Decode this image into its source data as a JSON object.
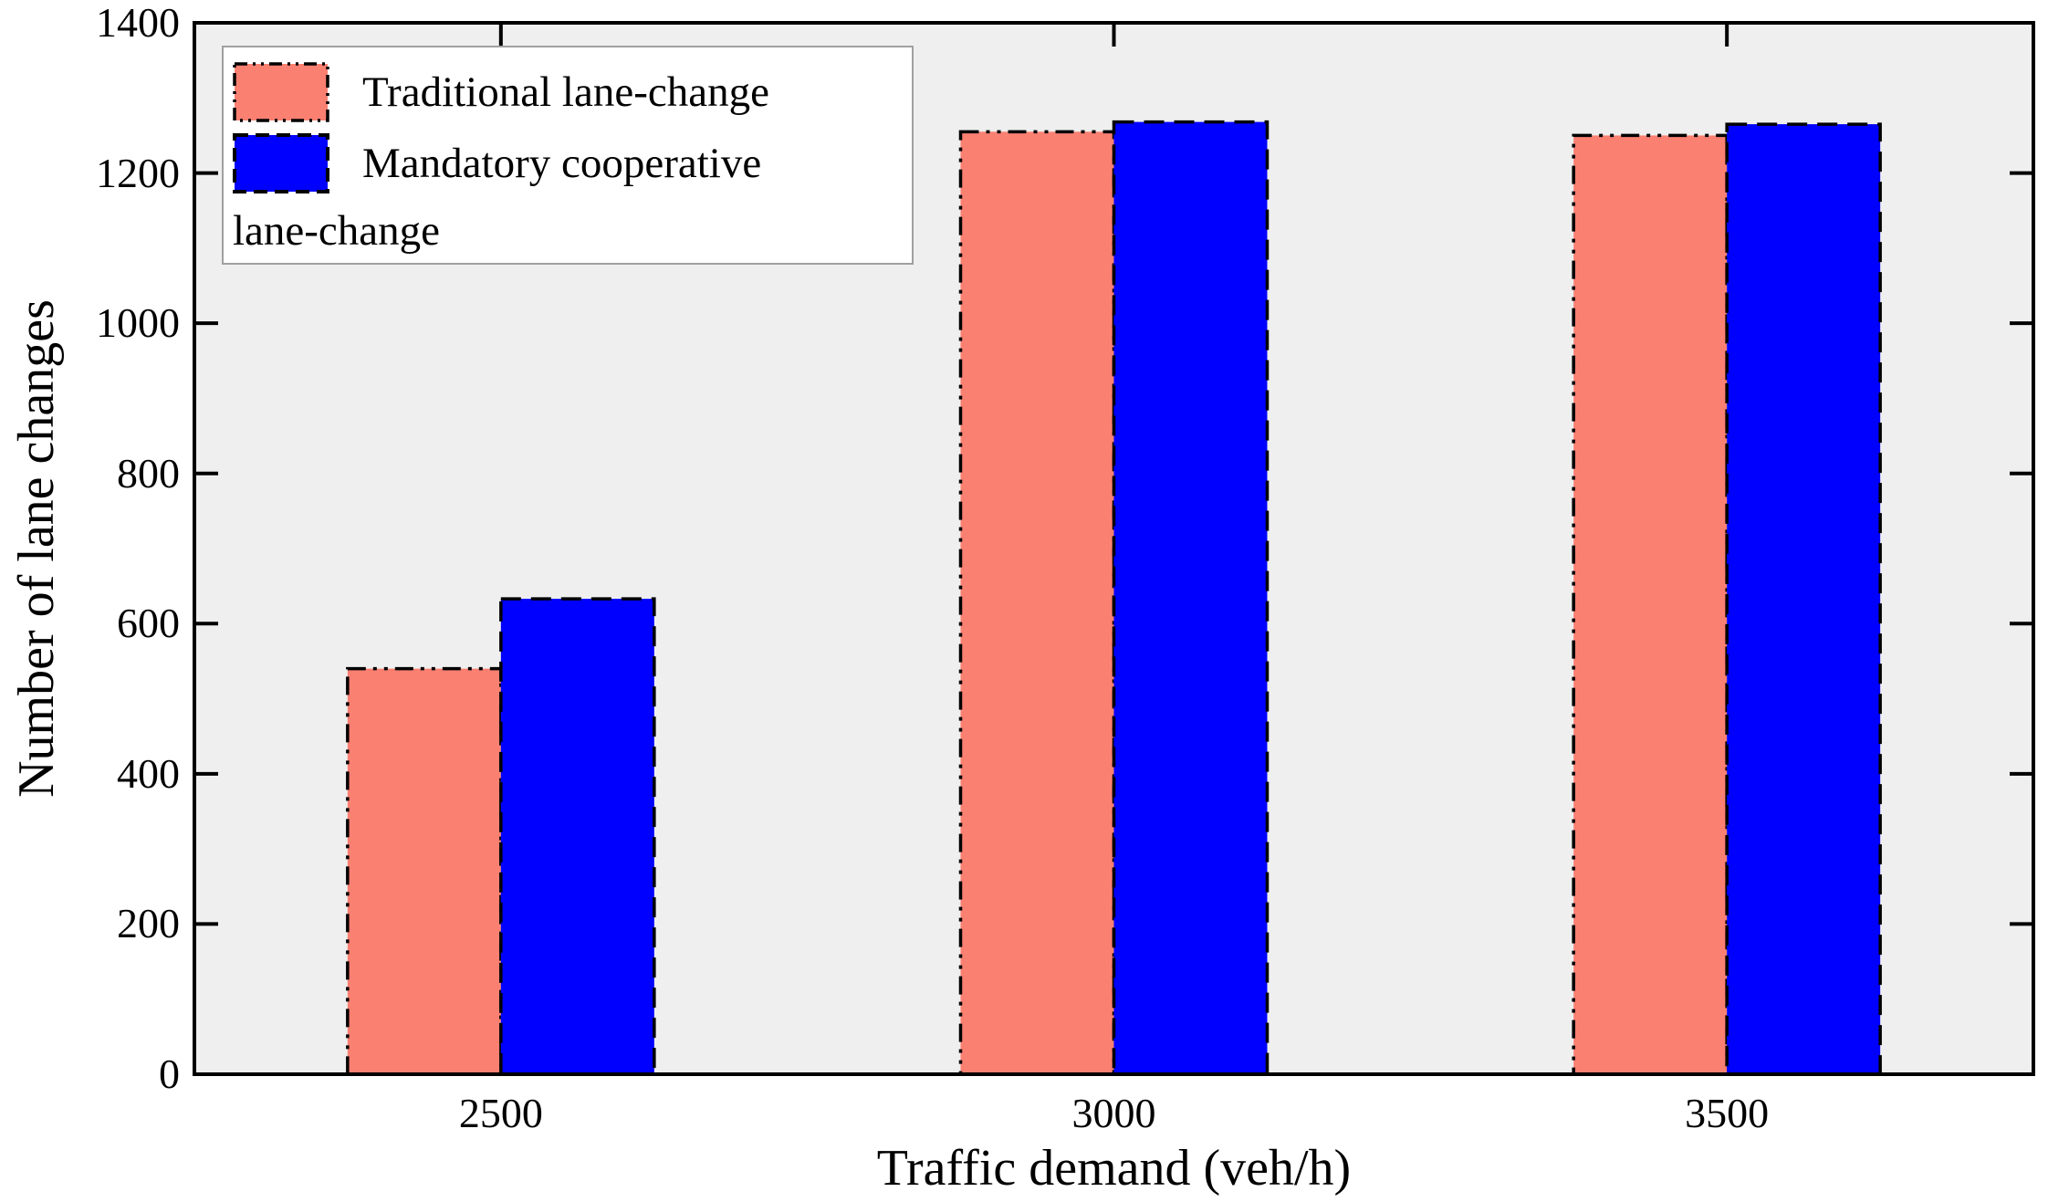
{
  "chart_data": {
    "type": "bar",
    "title": "",
    "xlabel": "Traffic demand (veh/h)",
    "ylabel": "Number of lane changes",
    "categories": [
      "2500",
      "3000",
      "3500"
    ],
    "series": [
      {
        "name": "Traditional lane-change",
        "color": "#FA8072",
        "border_style": "dash-dot-dot",
        "values": [
          540,
          1255,
          1250
        ]
      },
      {
        "name": "Mandatory cooperative lane-change",
        "color": "#0000FF",
        "border_style": "dashed",
        "values": [
          633,
          1268,
          1265
        ]
      }
    ],
    "ylim": [
      0,
      1400
    ],
    "yticks": [
      0,
      200,
      400,
      600,
      800,
      1000,
      1200,
      1400
    ],
    "grid": false,
    "plot_bg": "#EFEFEF",
    "frame_color": "#000000",
    "tick_direction": "in",
    "legend_position": "upper-left",
    "legend": {
      "row1_label": "Traditional lane-change",
      "row2_label": "Mandatory cooperative",
      "row3_label": "lane-change"
    }
  }
}
